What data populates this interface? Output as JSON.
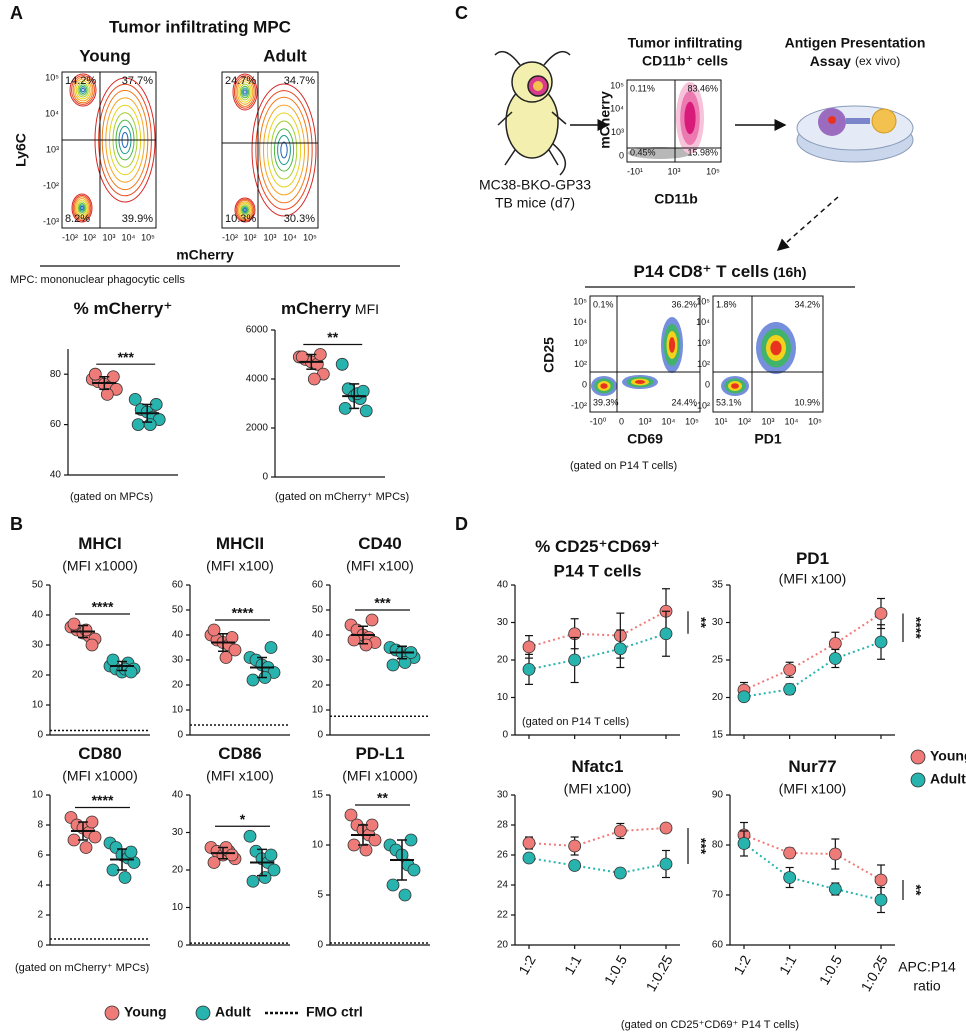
{
  "figure": {
    "letters": [
      "A",
      "B",
      "C",
      "D"
    ],
    "A": {
      "title": "Tumor infiltrating MPC",
      "plots": [
        {
          "label": "Young",
          "quadrants": [
            "14.2%",
            "37.7%",
            "8.2%",
            "39.9%"
          ]
        },
        {
          "label": "Adult",
          "quadrants": [
            "24.7%",
            "34.7%",
            "10.3%",
            "30.3%"
          ]
        }
      ],
      "y_axis": "Ly6C",
      "x_axis": "mCherry",
      "y_ticks": [
        "10⁵",
        "10⁴",
        "10³",
        "-10²",
        "-10³"
      ],
      "x_ticks": [
        "-10²",
        "10²",
        "10³",
        "10⁴",
        "10⁵"
      ],
      "footnote": "MPC: mononuclear phagocytic cells"
    },
    "C": {
      "mouse_label": [
        "MC38-BKO-GP33",
        "TB mice (d7)"
      ],
      "sort_title": [
        "Tumor infiltrating",
        "CD11b⁺ cells"
      ],
      "sort_plot": {
        "y_axis": "mCherry",
        "x_axis": "CD11b",
        "quadrants": [
          "0.11%",
          "83.46%",
          "0.45%",
          "15.98%"
        ],
        "y_ticks": [
          "10⁵",
          "10⁴",
          "10³",
          "0"
        ],
        "x_ticks": [
          "-10¹",
          "10³",
          "10⁵"
        ]
      },
      "assay_title": [
        "Antigen Presentation",
        "Assay"
      ],
      "assay_note": "(ex vivo)",
      "tcell_title": "P14 CD8⁺ T cells",
      "tcell_time": "(16h)",
      "tcell_y_axis": "CD25",
      "tcell_y_ticks": [
        "10⁵",
        "10⁴",
        "10³",
        "10²",
        "0",
        "-10²"
      ],
      "tcell_plots": [
        {
          "x_axis": "CD69",
          "quadrants": [
            "0.1%",
            "36.2%",
            "39.3%",
            "24.4%"
          ],
          "x_ticks": [
            "-10⁰",
            "0",
            "10³",
            "10⁴",
            "10⁵"
          ]
        },
        {
          "x_axis": "PD1",
          "quadrants": [
            "1.8%",
            "34.2%",
            "53.1%",
            "10.9%"
          ],
          "x_ticks": [
            "10¹",
            "10²",
            "10³",
            "10⁴",
            "10⁵"
          ]
        }
      ],
      "gating": "(gated on P14 T cells)"
    },
    "legend_B": [
      {
        "name": "Young",
        "color": "#ef7b78"
      },
      {
        "name": "Adult",
        "color": "#27b3ae"
      },
      {
        "name": "FMO ctrl"
      }
    ],
    "legend_D": [
      {
        "name": "Young",
        "color": "#ef7b78"
      },
      {
        "name": "Adult",
        "color": "#27b3ae"
      }
    ],
    "D_x_label": [
      "APC:P14",
      "ratio"
    ],
    "D_note": "(gated on CD25⁺CD69⁺ P14 T cells)"
  },
  "chart_data": [
    {
      "type": "dot",
      "title": "% mCherry⁺",
      "sig": "***",
      "note": "(gated on MPCs)",
      "ylim": [
        40,
        90
      ],
      "yticks": [
        40,
        60,
        80
      ],
      "series": [
        {
          "color": "#ef7b78",
          "values": [
            78,
            77,
            76,
            75,
            74,
            80,
            72,
            79
          ],
          "mean": 76.5,
          "error": 2.5
        },
        {
          "color": "#27b3ae",
          "values": [
            70,
            66,
            65,
            63,
            62,
            60,
            60,
            68
          ],
          "mean": 64.5,
          "error": 3.5
        }
      ]
    },
    {
      "type": "dot",
      "title": "mCherry",
      "title_note": "MFI",
      "sig": "**",
      "note": "(gated on mCherry⁺ MPCs)",
      "ylim": [
        0,
        6000
      ],
      "yticks": [
        0,
        2000,
        4000,
        6000
      ],
      "series": [
        {
          "color": "#ef7b78",
          "values": [
            4900,
            4800,
            4700,
            4600,
            4200,
            4900,
            4000,
            5000
          ],
          "mean": 4700,
          "error": 300
        },
        {
          "color": "#27b3ae",
          "values": [
            4600,
            3600,
            3300,
            3200,
            2700,
            2800,
            3400,
            3500
          ],
          "mean": 3300,
          "error": 500
        }
      ]
    },
    {
      "type": "dot",
      "title": "MHCI",
      "subtitle": "(MFI x1000)",
      "sig": "****",
      "fmo": 1.5,
      "ylim": [
        0,
        50
      ],
      "yticks": [
        0,
        10,
        20,
        30,
        40,
        50
      ],
      "series": [
        {
          "color": "#ef7b78",
          "values": [
            36,
            35,
            34,
            33,
            32,
            37,
            35,
            30
          ],
          "mean": 34.5,
          "error": 2
        },
        {
          "color": "#27b3ae",
          "values": [
            23,
            22,
            21,
            24,
            22,
            25,
            22,
            21
          ],
          "mean": 23,
          "error": 1.5
        }
      ]
    },
    {
      "type": "dot",
      "title": "MHCII",
      "subtitle": "(MFI x100)",
      "sig": "****",
      "fmo": 4,
      "ylim": [
        0,
        60
      ],
      "yticks": [
        0,
        10,
        20,
        30,
        40,
        50,
        60
      ],
      "series": [
        {
          "color": "#ef7b78",
          "values": [
            40,
            38,
            37,
            36,
            34,
            42,
            31,
            39
          ],
          "mean": 37,
          "error": 3.5
        },
        {
          "color": "#27b3ae",
          "values": [
            31,
            30,
            28,
            27,
            25,
            22,
            23,
            35
          ],
          "mean": 27,
          "error": 4
        }
      ]
    },
    {
      "type": "dot",
      "title": "CD40",
      "subtitle": "(MFI x100)",
      "sig": "***",
      "fmo": 7.5,
      "ylim": [
        0,
        60
      ],
      "yticks": [
        0,
        10,
        20,
        30,
        40,
        50,
        60
      ],
      "series": [
        {
          "color": "#ef7b78",
          "values": [
            44,
            42,
            40,
            39,
            37,
            38,
            36,
            46
          ],
          "mean": 40,
          "error": 3.5
        },
        {
          "color": "#27b3ae",
          "values": [
            35,
            34,
            33,
            32,
            31,
            28,
            29,
            33
          ],
          "mean": 33,
          "error": 2.5
        }
      ]
    },
    {
      "type": "dot",
      "title": "CD80",
      "subtitle": "(MFI x1000)",
      "sig": "****",
      "fmo": 0.4,
      "note": "(gated on mCherry⁺ MPCs)",
      "ylim": [
        0,
        10
      ],
      "yticks": [
        0,
        2,
        4,
        6,
        8,
        10
      ],
      "series": [
        {
          "color": "#ef7b78",
          "values": [
            8.5,
            8,
            7.8,
            7.5,
            7.2,
            7,
            6.5,
            8.2
          ],
          "mean": 7.6,
          "error": 0.6
        },
        {
          "color": "#27b3ae",
          "values": [
            6.8,
            6.5,
            6,
            5.8,
            5.5,
            5,
            4.5,
            6.2
          ],
          "mean": 5.7,
          "error": 0.7
        }
      ]
    },
    {
      "type": "dot",
      "title": "CD86",
      "subtitle": "(MFI x100)",
      "sig": "*",
      "fmo": 0.5,
      "ylim": [
        0,
        40
      ],
      "yticks": [
        0,
        10,
        20,
        30,
        40
      ],
      "series": [
        {
          "color": "#ef7b78",
          "values": [
            26,
            25,
            24,
            25,
            23,
            22,
            26,
            24
          ],
          "mean": 24.5,
          "error": 1.5
        },
        {
          "color": "#27b3ae",
          "values": [
            29,
            25,
            23,
            22,
            20,
            17,
            18,
            24
          ],
          "mean": 22,
          "error": 3.5
        }
      ]
    },
    {
      "type": "dot",
      "title": "PD-L1",
      "subtitle": "(MFI x1000)",
      "sig": "**",
      "fmo": 0.2,
      "ylim": [
        0,
        15
      ],
      "yticks": [
        0,
        5,
        10,
        15
      ],
      "series": [
        {
          "color": "#ef7b78",
          "values": [
            13,
            12,
            11.5,
            11,
            10.5,
            10,
            9.5,
            12
          ],
          "mean": 11,
          "error": 1
        },
        {
          "color": "#27b3ae",
          "values": [
            10,
            9.5,
            9,
            8,
            7.5,
            6,
            5,
            10.5
          ],
          "mean": 8.5,
          "error": 2
        }
      ]
    },
    {
      "type": "line",
      "title": "% CD25⁺CD69⁺",
      "subtitle": "P14 T cells",
      "sig": "**",
      "note": "(gated on P14 T cells)",
      "categories": [
        null,
        null,
        null,
        null
      ],
      "ylim": [
        0,
        40
      ],
      "yticks": [
        0,
        10,
        20,
        30,
        40
      ],
      "series": [
        {
          "color": "#ef7b78",
          "values": [
            23.5,
            27,
            26.5,
            33
          ],
          "errors": [
            3,
            4,
            6,
            6
          ]
        },
        {
          "color": "#27b3ae",
          "values": [
            17.5,
            20,
            23,
            27
          ],
          "errors": [
            4,
            6,
            5,
            6
          ]
        }
      ]
    },
    {
      "type": "line",
      "title": "PD1",
      "subtitle": "(MFI x100)",
      "sig": "****",
      "categories": [
        null,
        null,
        null,
        null
      ],
      "ylim": [
        15,
        35
      ],
      "yticks": [
        15,
        20,
        25,
        30,
        35
      ],
      "series": [
        {
          "color": "#ef7b78",
          "values": [
            21,
            23.7,
            27.2,
            31.2
          ],
          "errors": [
            1,
            1,
            1.5,
            2
          ]
        },
        {
          "color": "#27b3ae",
          "values": [
            20.1,
            21.1,
            25.2,
            27.4
          ],
          "errors": [
            0.5,
            0.7,
            1.2,
            2.3
          ]
        }
      ]
    },
    {
      "type": "line",
      "title": "Nfatc1",
      "subtitle": "(MFI x100)",
      "sig": "***",
      "categories": [
        "1:2",
        "1:1",
        "1:0.5",
        "1:0.25"
      ],
      "ylim": [
        20,
        30
      ],
      "yticks": [
        20,
        22,
        24,
        26,
        28,
        30
      ],
      "series": [
        {
          "color": "#ef7b78",
          "values": [
            26.8,
            26.6,
            27.6,
            27.8
          ],
          "errors": [
            0.4,
            0.6,
            0.5,
            0.2
          ]
        },
        {
          "color": "#27b3ae",
          "values": [
            25.8,
            25.3,
            24.8,
            25.4
          ],
          "errors": [
            0.2,
            0.2,
            0.3,
            0.9
          ]
        }
      ]
    },
    {
      "type": "line",
      "title": "Nur77",
      "subtitle": "(MFI x100)",
      "sig": "**",
      "categories": [
        "1:2",
        "1:1",
        "1:0.5",
        "1:0.25"
      ],
      "ylim": [
        60,
        90
      ],
      "yticks": [
        60,
        70,
        80,
        90
      ],
      "series": [
        {
          "color": "#ef7b78",
          "values": [
            82,
            78.4,
            78.2,
            73
          ],
          "errors": [
            2.5,
            1,
            3,
            3
          ]
        },
        {
          "color": "#27b3ae",
          "values": [
            80.3,
            73.5,
            71.2,
            69
          ],
          "errors": [
            2.5,
            2,
            1.2,
            2.5
          ]
        }
      ]
    }
  ]
}
